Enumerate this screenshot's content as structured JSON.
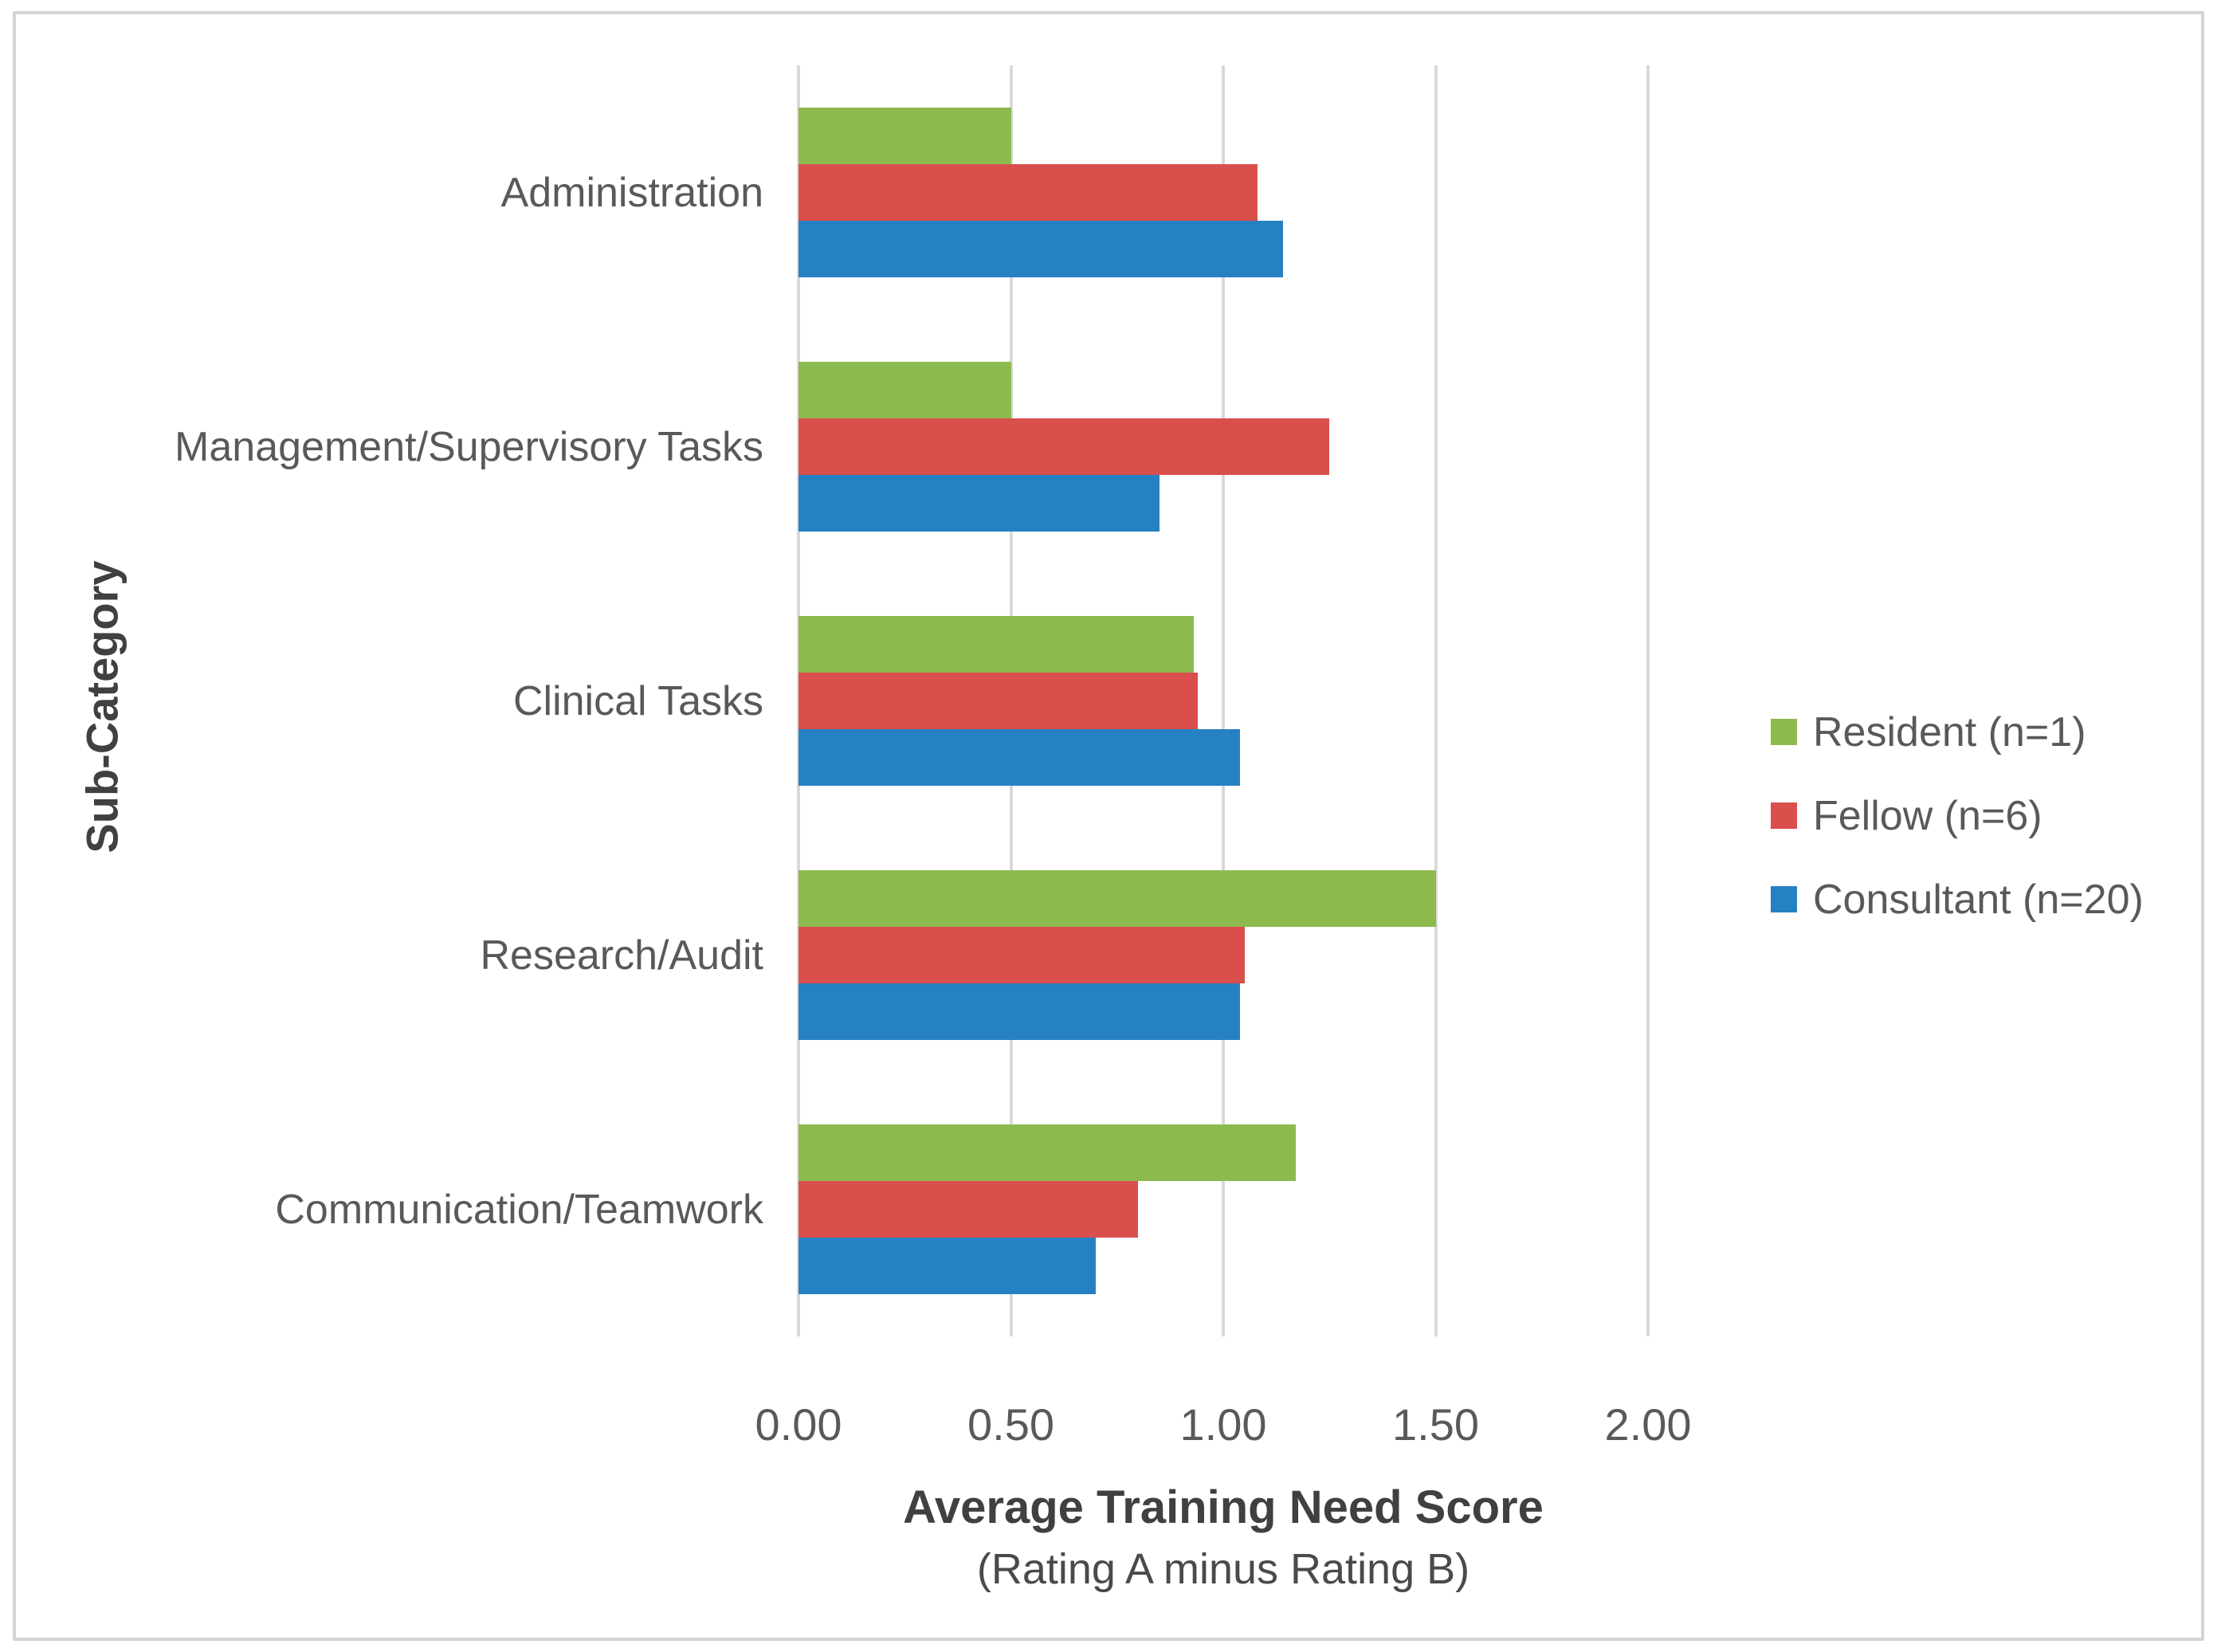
{
  "chart_data": {
    "type": "bar",
    "orientation": "horizontal",
    "title": "",
    "xlabel": "Average Training Need Score",
    "xlabel_sub": "(Rating A minus Rating B)",
    "ylabel": "Sub-Category",
    "xlim": [
      0,
      2
    ],
    "xticks": [
      0,
      0.5,
      1,
      1.5,
      2
    ],
    "xtick_labels": [
      "0.00",
      "0.50",
      "1.00",
      "1.50",
      "2.00"
    ],
    "grid": true,
    "legend_position": "right",
    "categories": [
      "Administration",
      "Management/Supervisory Tasks",
      "Clinical Tasks",
      "Research/Audit",
      "Communication/Teamwork"
    ],
    "series": [
      {
        "name": "Resident (n=1)",
        "color": "#8cba4d",
        "values": [
          0.5,
          0.5,
          0.93,
          1.5,
          1.17
        ]
      },
      {
        "name": "Fellow (n=6)",
        "color": "#d94f4c",
        "values": [
          1.08,
          1.25,
          0.94,
          1.05,
          0.8
        ]
      },
      {
        "name": "Consultant (n=20)",
        "color": "#2681c3",
        "values": [
          1.14,
          0.85,
          1.04,
          1.04,
          0.7
        ]
      }
    ]
  },
  "colors": {
    "gridline": "#d9d9d9",
    "frame_border": "#d4d4d4",
    "axis_text": "#595959",
    "title_text": "#404040",
    "background": "#ffffff"
  }
}
